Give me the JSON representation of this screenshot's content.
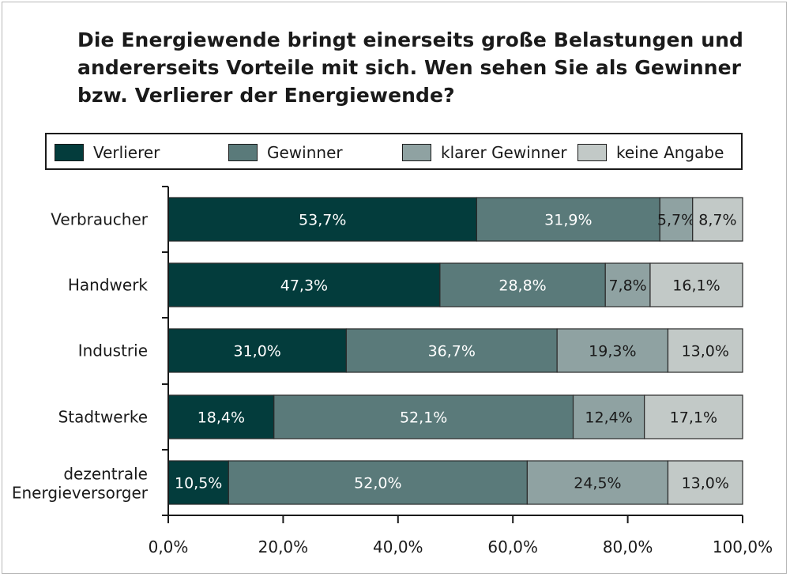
{
  "chart_data": {
    "type": "bar",
    "orientation": "horizontal",
    "stacked": true,
    "title": "Die Energiewende bringt einerseits große Belastungen und andererseits Vorteile mit sich. Wen sehen Sie als Gewinner bzw. Verlierer der Energiewende?",
    "categories": [
      "Verbraucher",
      "Handwerk",
      "Industrie",
      "Stadtwerke",
      "dezentrale Energieversorger"
    ],
    "series": [
      {
        "name": "Verlierer",
        "color": "#033c3c",
        "label_color": "#ffffff",
        "values": [
          53.7,
          47.3,
          31.0,
          18.4,
          10.5
        ],
        "labels": [
          "53,7%",
          "47,3%",
          "31,0%",
          "18,4%",
          "10,5%"
        ]
      },
      {
        "name": "Gewinner",
        "color": "#5a7a7a",
        "label_color": "#ffffff",
        "values": [
          31.9,
          28.8,
          36.7,
          52.1,
          52.0
        ],
        "labels": [
          "31,9%",
          "28,8%",
          "36,7%",
          "52,1%",
          "52,0%"
        ]
      },
      {
        "name": "klarer Gewinner",
        "color": "#8fa2a2",
        "label_color": "#1a1a1a",
        "values": [
          5.7,
          7.8,
          19.3,
          12.4,
          24.5
        ],
        "labels": [
          "5,7%",
          "7,8%",
          "19,3%",
          "12,4%",
          "24,5%"
        ]
      },
      {
        "name": "keine Angabe",
        "color": "#c2c9c7",
        "label_color": "#1a1a1a",
        "values": [
          8.7,
          16.1,
          13.0,
          17.1,
          13.0
        ],
        "labels": [
          "8,7%",
          "16,1%",
          "13,0%",
          "17,1%",
          "13,0%"
        ]
      }
    ],
    "xlim": [
      0,
      100
    ],
    "xticks": [
      0,
      20,
      40,
      60,
      80,
      100
    ],
    "xtick_labels": [
      "0,0%",
      "20,0%",
      "40,0%",
      "60,0%",
      "80,0%",
      "100,0%"
    ],
    "legend": "top",
    "grid": false
  }
}
